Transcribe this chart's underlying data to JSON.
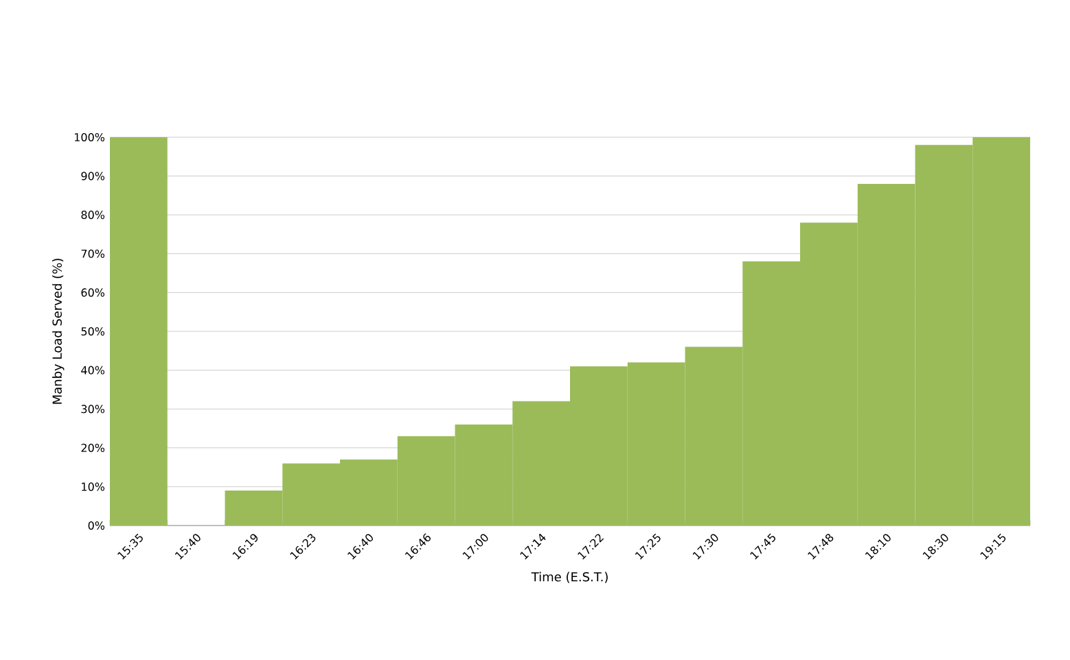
{
  "chart_data": {
    "type": "bar",
    "xlabel": "Time (E.S.T.)",
    "ylabel": "Manby Load Served (%)",
    "categories": [
      "15:35",
      "15:40",
      "16:19",
      "16:23",
      "16:40",
      "16:46",
      "17:00",
      "17:14",
      "17:22",
      "17:25",
      "17:30",
      "17:45",
      "17:48",
      "18:10",
      "18:30",
      "19:15"
    ],
    "values": [
      100,
      0,
      9,
      16,
      17,
      23,
      26,
      32,
      41,
      42,
      46,
      68,
      78,
      88,
      98,
      100
    ],
    "color": "#9bbb59",
    "ylim": [
      0,
      100
    ],
    "yticks": [
      {
        "value": 0,
        "label": "0%"
      },
      {
        "value": 10,
        "label": "10%"
      },
      {
        "value": 20,
        "label": "20%"
      },
      {
        "value": 30,
        "label": "30%"
      },
      {
        "value": 40,
        "label": "40%"
      },
      {
        "value": 50,
        "label": "50%"
      },
      {
        "value": 60,
        "label": "60%"
      },
      {
        "value": 70,
        "label": "70%"
      },
      {
        "value": 80,
        "label": "80%"
      },
      {
        "value": 90,
        "label": "90%"
      },
      {
        "value": 100,
        "label": "100%"
      }
    ],
    "grid": "y"
  }
}
